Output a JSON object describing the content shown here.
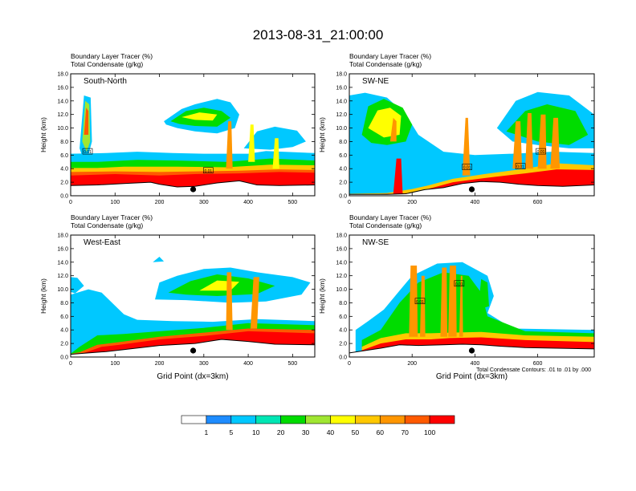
{
  "figure": {
    "title": "2013-08-31_21:00:00",
    "contour_note": "Total Condensate Contours: .01 to .01 by .000"
  },
  "colorbar": {
    "levels": [
      "1",
      "5",
      "10",
      "20",
      "30",
      "40",
      "50",
      "60",
      "70",
      "100"
    ],
    "colors": [
      "#ffffff",
      "#1e8cff",
      "#00c8ff",
      "#00e6b4",
      "#00dc00",
      "#a0e632",
      "#ffff00",
      "#ffc800",
      "#ff9600",
      "#ff5a00",
      "#ff0000"
    ]
  },
  "chart_data": [
    {
      "type": "heatmap",
      "panel_label": "South-North",
      "subtitles": [
        "Boundary Layer Tracer (%)",
        "Total Condensate (g/kg)"
      ],
      "ylabel": "Height (km)",
      "xlabel": "",
      "ylim": [
        0,
        18
      ],
      "xlim": [
        0,
        550
      ],
      "xticks": [
        0,
        100,
        200,
        300,
        400,
        500
      ],
      "yticks": [
        "0.0",
        "2.0",
        "4.0",
        "6.0",
        "8.0",
        "10.0",
        "12.0",
        "14.0",
        "16.0",
        "18.0"
      ],
      "marker_x": 276,
      "contour_labels": [
        {
          "text": "0.01",
          "x": 38,
          "y": 6.5
        },
        {
          "text": "0.01",
          "x": 310,
          "y": 3.7
        }
      ]
    },
    {
      "type": "heatmap",
      "panel_label": "SW-NE",
      "subtitles": [
        "Boundary Layer Tracer (%)",
        "Total Condensate (g/kg)"
      ],
      "ylabel": "Height (km)",
      "xlabel": "",
      "ylim": [
        0,
        18
      ],
      "xlim": [
        0,
        780
      ],
      "xticks": [
        0,
        200,
        400,
        600
      ],
      "yticks": [
        "0.0",
        "2.0",
        "4.0",
        "6.0",
        "8.0",
        "10.0",
        "12.0",
        "14.0",
        "16.0",
        "18.0"
      ],
      "marker_x": 390,
      "contour_labels": [
        {
          "text": "0.01",
          "x": 375,
          "y": 4.2
        },
        {
          "text": "0.01",
          "x": 545,
          "y": 4.3
        },
        {
          "text": "0.01",
          "x": 610,
          "y": 6.5
        }
      ]
    },
    {
      "type": "heatmap",
      "panel_label": "West-East",
      "subtitles": [
        "Boundary Layer Tracer (%)",
        "Total Condensate (g/kg)"
      ],
      "ylabel": "Height (km)",
      "xlabel": "Grid Point (dx=3km)",
      "ylim": [
        0,
        18
      ],
      "xlim": [
        0,
        550
      ],
      "xticks": [
        0,
        100,
        200,
        300,
        400,
        500
      ],
      "yticks": [
        "0.0",
        "2.0",
        "4.0",
        "6.0",
        "8.0",
        "10.0",
        "12.0",
        "14.0",
        "16.0",
        "18.0"
      ],
      "marker_x": 276,
      "contour_labels": []
    },
    {
      "type": "heatmap",
      "panel_label": "NW-SE",
      "subtitles": [
        "Boundary Layer Tracer (%)",
        "Total Condensate (g/kg)"
      ],
      "ylabel": "Height (km)",
      "xlabel": "Grid Point (dx=3km)",
      "ylim": [
        0,
        18
      ],
      "xlim": [
        0,
        780
      ],
      "xticks": [
        0,
        200,
        400,
        600
      ],
      "yticks": [
        "0.0",
        "2.0",
        "4.0",
        "6.0",
        "8.0",
        "10.0",
        "12.0",
        "14.0",
        "16.0",
        "18.0"
      ],
      "marker_x": 390,
      "contour_labels": [
        {
          "text": "0.01",
          "x": 225,
          "y": 8.2
        },
        {
          "text": "0.01",
          "x": 350,
          "y": 10.8
        }
      ]
    }
  ]
}
